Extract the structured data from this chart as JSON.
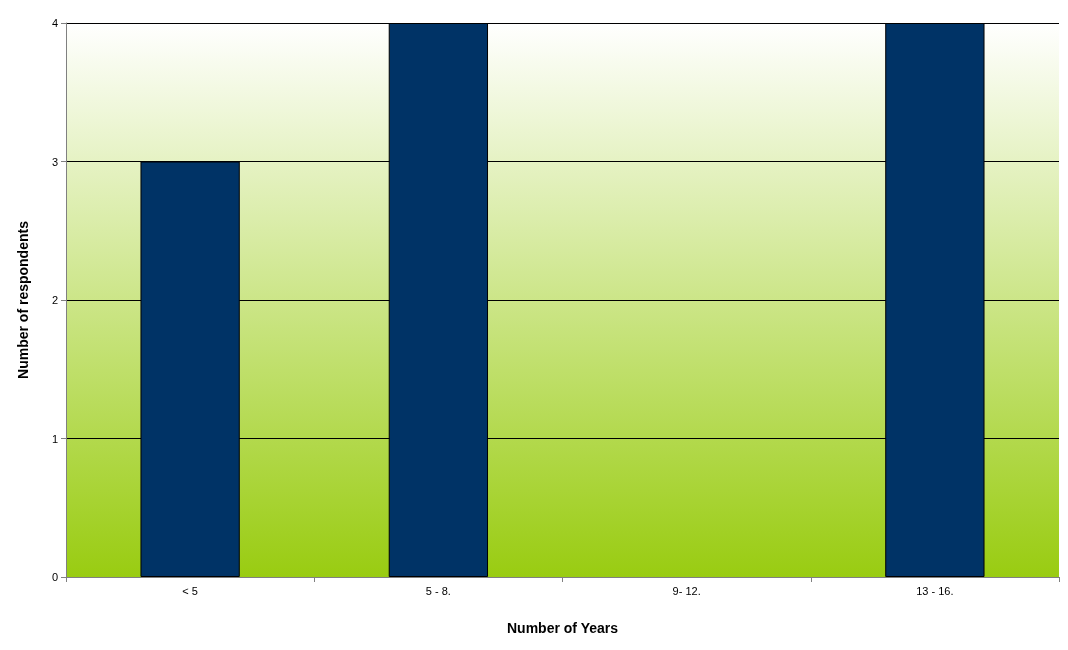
{
  "chart_data": {
    "type": "bar",
    "xlabel": "Number of Years",
    "ylabel": "Number of respondents",
    "categories": [
      "< 5",
      "5 - 8.",
      "9- 12.",
      "13 - 16."
    ],
    "values": [
      3,
      4,
      0,
      4
    ],
    "color": "#003366",
    "ylim": [
      0,
      4
    ],
    "yticks": [
      0,
      1,
      2,
      3,
      4
    ],
    "grid": "y"
  }
}
